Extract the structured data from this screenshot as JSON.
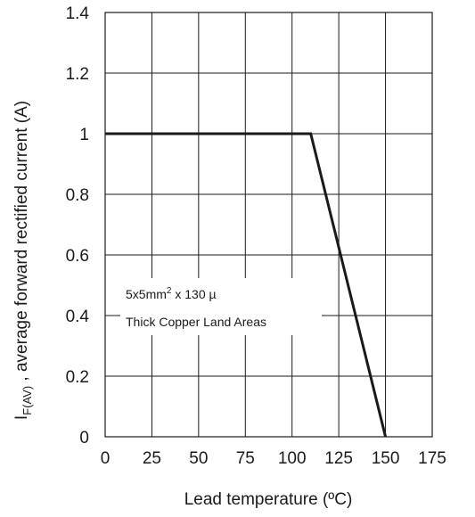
{
  "chart_data": {
    "type": "line",
    "xlabel": "Lead temperature (ºC)",
    "ylabel_main": "I",
    "ylabel_sub": "F(AV)",
    "ylabel_rest": " , average forward rectified current (A)",
    "xlim": [
      0,
      175
    ],
    "ylim": [
      0,
      1.4
    ],
    "x_ticks": [
      0,
      25,
      50,
      75,
      100,
      125,
      150,
      175
    ],
    "x_tick_labels": [
      "0",
      "25",
      "50",
      "75",
      "100",
      "125",
      "150",
      "175"
    ],
    "y_ticks": [
      0,
      0.2,
      0.4,
      0.6,
      0.8,
      1.0,
      1.2,
      1.4
    ],
    "y_tick_labels": [
      "0",
      "0.2",
      "0.4",
      "0.6",
      "0.8",
      "1",
      "1.2",
      "1.4"
    ],
    "grid": true,
    "series": [
      {
        "x": [
          0,
          110,
          150
        ],
        "y": [
          1.0,
          1.0,
          0
        ]
      }
    ],
    "annotation": {
      "line1_base": "5x5mm",
      "line1_sup": "2",
      "line1_rest": " x 130 µ",
      "line2": "Thick Copper Land Areas"
    }
  }
}
